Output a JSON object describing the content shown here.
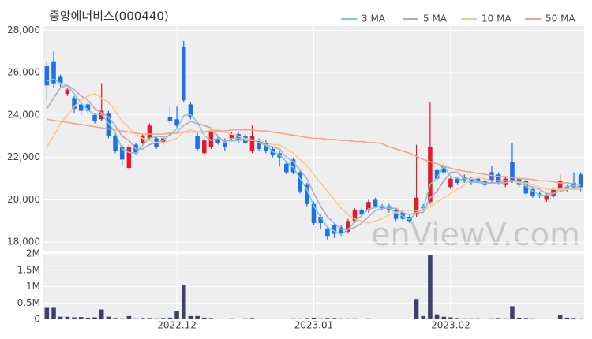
{
  "chart_data": [
    {
      "type": "candlestick",
      "title": "중앙에너비스(000440)",
      "watermark": "enViewV.com",
      "up_color": "#e8192c",
      "down_color": "#1f6fe5",
      "legend": "upper right",
      "grid": true,
      "ylim": [
        17600,
        28200
      ],
      "yticks": [
        {
          "value": 18000,
          "label": "18,000"
        },
        {
          "value": 20000,
          "label": "20,000"
        },
        {
          "value": 22000,
          "label": "22,000"
        },
        {
          "value": 24000,
          "label": "24,000"
        },
        {
          "value": 26000,
          "label": "26,000"
        },
        {
          "value": 28000,
          "label": "28,000"
        }
      ],
      "open": [
        26300,
        26500,
        25800,
        25000,
        24800,
        24500,
        24500,
        24000,
        23800,
        24100,
        23000,
        22500,
        21500,
        22600,
        22700,
        22900,
        22900,
        22700,
        23900,
        23800,
        27200,
        24500,
        23000,
        22200,
        22500,
        22900,
        22800,
        22900,
        23100,
        23000,
        22300,
        22800,
        22700,
        22400,
        22200,
        21700,
        21900,
        21300,
        20700,
        19800,
        19200,
        18600,
        18800,
        18700,
        18500,
        19000,
        19500,
        19500,
        20000,
        19700,
        19700,
        19500,
        19400,
        19200,
        19300,
        19700,
        19900,
        21400,
        21600,
        20600,
        21000,
        21100,
        21000,
        21000,
        20900,
        21300,
        21200,
        20700,
        21800,
        21000,
        20900,
        20500,
        20300,
        20000,
        20200,
        20500,
        20600,
        20800,
        21200
      ],
      "high": [
        26500,
        27000,
        25900,
        25300,
        24900,
        24600,
        24600,
        24100,
        25500,
        24200,
        23100,
        22600,
        22600,
        22700,
        23100,
        23600,
        23000,
        23000,
        24400,
        24400,
        27500,
        24600,
        23200,
        22900,
        23300,
        23000,
        22900,
        23200,
        23200,
        23100,
        23500,
        22900,
        22800,
        22500,
        22300,
        21800,
        22000,
        21400,
        20800,
        19900,
        19300,
        18700,
        18900,
        18800,
        19100,
        19600,
        19600,
        20000,
        20100,
        19800,
        19800,
        19600,
        19500,
        19300,
        22600,
        19800,
        24600,
        21500,
        21700,
        21100,
        21100,
        21200,
        21100,
        21100,
        21000,
        21600,
        21300,
        21100,
        22700,
        21100,
        21000,
        20600,
        20400,
        20300,
        20600,
        21200,
        20700,
        21300,
        21300
      ],
      "low": [
        24700,
        25300,
        25300,
        24900,
        24100,
        24000,
        24100,
        23600,
        23700,
        22900,
        22200,
        21600,
        21400,
        22100,
        22600,
        22800,
        22400,
        22600,
        23500,
        23400,
        24600,
        23800,
        22300,
        22100,
        22400,
        22600,
        22300,
        22800,
        22700,
        22600,
        22200,
        22300,
        22200,
        22000,
        21600,
        21200,
        21200,
        20300,
        19700,
        18800,
        18600,
        18100,
        18200,
        18300,
        18400,
        18900,
        19200,
        19400,
        19600,
        19500,
        19400,
        19000,
        19000,
        18900,
        19200,
        19500,
        19800,
        20900,
        21200,
        20500,
        20700,
        20800,
        20700,
        20700,
        20600,
        20800,
        20700,
        20600,
        20800,
        20600,
        20200,
        20100,
        20100,
        19900,
        20100,
        20400,
        20400,
        20500,
        20400
      ],
      "close": [
        25400,
        25500,
        25500,
        25200,
        24300,
        24200,
        24200,
        23700,
        24200,
        23000,
        22300,
        21900,
        22500,
        22200,
        23000,
        23500,
        22500,
        22900,
        23700,
        23500,
        24700,
        23900,
        22400,
        22800,
        23200,
        22700,
        22500,
        23100,
        22800,
        22700,
        23000,
        22400,
        22300,
        22100,
        22000,
        21300,
        21300,
        20400,
        19800,
        18900,
        18900,
        18300,
        18400,
        18400,
        19000,
        19500,
        19300,
        19900,
        19700,
        19600,
        19500,
        19100,
        19100,
        19000,
        20100,
        19600,
        22500,
        21000,
        21300,
        21000,
        20800,
        20900,
        20800,
        20800,
        20700,
        20900,
        20800,
        21000,
        20900,
        20700,
        20300,
        20200,
        20200,
        20200,
        20500,
        20900,
        20500,
        20600,
        20600
      ],
      "series": [
        {
          "name": "3 MA",
          "color": "#6fd3cf",
          "values": [
            25600,
            25700,
            25500,
            25400,
            25000,
            24570,
            24230,
            24030,
            24030,
            23630,
            23170,
            22400,
            22230,
            22200,
            22570,
            22900,
            23000,
            22970,
            23030,
            23370,
            23970,
            24030,
            23670,
            23030,
            22800,
            22900,
            22800,
            22770,
            22800,
            22870,
            22830,
            22700,
            22570,
            22270,
            22130,
            21800,
            21530,
            21000,
            20500,
            19700,
            19200,
            18700,
            18530,
            18370,
            18600,
            18970,
            19270,
            19570,
            19630,
            19730,
            19600,
            19400,
            19230,
            19070,
            19400,
            19570,
            20730,
            21030,
            21600,
            21100,
            21030,
            20900,
            20830,
            20830,
            20770,
            20800,
            20800,
            20900,
            20900,
            20870,
            20630,
            20400,
            20230,
            20200,
            20300,
            20530,
            20630,
            20670,
            20570
          ]
        },
        {
          "name": "5 MA",
          "color": "#b9a7cb",
          "values": [
            24300,
            24800,
            25300,
            25400,
            25200,
            24900,
            24700,
            24300,
            24100,
            23900,
            23500,
            23000,
            22800,
            22400,
            22400,
            22600,
            22700,
            22800,
            23100,
            23200,
            23500,
            23700,
            23600,
            23500,
            23400,
            23000,
            22700,
            22900,
            22900,
            22800,
            22800,
            22800,
            22600,
            22500,
            22400,
            22000,
            21800,
            21400,
            21000,
            20300,
            19700,
            19200,
            18900,
            18600,
            18600,
            18700,
            18900,
            19200,
            19500,
            19600,
            19600,
            19600,
            19400,
            19300,
            19400,
            19400,
            20100,
            20400,
            20900,
            21300,
            21300,
            21000,
            21000,
            20900,
            20800,
            20800,
            20800,
            20800,
            20900,
            20900,
            20700,
            20600,
            20500,
            20300,
            20300,
            20400,
            20500,
            20500,
            20600
          ]
        },
        {
          "name": "10 MA",
          "color": "#f6ca8c",
          "values": [
            22500,
            23000,
            23600,
            24000,
            24400,
            24700,
            24900,
            25000,
            24800,
            24600,
            24200,
            23700,
            23400,
            23100,
            22900,
            22800,
            22700,
            22700,
            22800,
            22900,
            23200,
            23300,
            23200,
            23200,
            23300,
            23300,
            23200,
            23100,
            23000,
            22900,
            22800,
            22800,
            22700,
            22600,
            22600,
            22400,
            22200,
            21900,
            21600,
            21200,
            20800,
            20400,
            20000,
            19600,
            19300,
            19100,
            19000,
            18900,
            19000,
            19100,
            19300,
            19400,
            19500,
            19500,
            19500,
            19500,
            19700,
            19900,
            20100,
            20300,
            20500,
            20700,
            21000,
            21100,
            21000,
            20900,
            20900,
            20900,
            20900,
            20800,
            20800,
            20700,
            20600,
            20500,
            20500,
            20500,
            20500,
            20500,
            20500
          ]
        },
        {
          "name": "50 MA",
          "color": "#f5a38d",
          "values": [
            23800,
            23750,
            23700,
            23650,
            23600,
            23550,
            23500,
            23450,
            23400,
            23350,
            23300,
            23250,
            23200,
            23150,
            23100,
            23100,
            23100,
            23100,
            23150,
            23150,
            23200,
            23200,
            23200,
            23200,
            23250,
            23250,
            23250,
            23300,
            23300,
            23300,
            23300,
            23250,
            23250,
            23200,
            23150,
            23100,
            23050,
            23000,
            22950,
            22900,
            22900,
            22850,
            22850,
            22800,
            22800,
            22750,
            22750,
            22700,
            22700,
            22650,
            22500,
            22400,
            22300,
            22200,
            22050,
            21900,
            21800,
            21700,
            21600,
            21500,
            21400,
            21350,
            21300,
            21250,
            21200,
            21150,
            21100,
            21100,
            21050,
            21000,
            21000,
            20950,
            20900,
            20900,
            20850,
            20800,
            20800,
            20750,
            20700
          ]
        }
      ]
    },
    {
      "type": "bar",
      "color": "#3f3f6e",
      "grid": true,
      "ylim": [
        0,
        2000000
      ],
      "yticks": [
        0,
        {
          "value": 500000,
          "label": "0.5M"
        },
        {
          "value": 1000000,
          "label": "1M"
        },
        {
          "value": 1500000,
          "label": "1.5M"
        },
        {
          "value": 2000000,
          "label": "2M"
        }
      ],
      "categories": [
        null,
        null,
        null,
        null,
        null,
        null,
        null,
        null,
        null,
        null,
        null,
        null,
        null,
        null,
        null,
        null,
        null,
        null,
        null,
        "2022.12",
        null,
        null,
        null,
        null,
        null,
        null,
        null,
        null,
        null,
        null,
        null,
        null,
        null,
        null,
        null,
        null,
        null,
        null,
        null,
        "2023.01",
        null,
        null,
        null,
        null,
        null,
        null,
        null,
        null,
        null,
        null,
        null,
        null,
        null,
        null,
        null,
        null,
        null,
        null,
        null,
        "2023.02",
        null,
        null,
        null,
        null,
        null,
        null,
        null,
        null,
        null,
        null,
        null,
        null,
        null,
        null,
        null,
        null,
        null,
        null,
        null
      ],
      "values": [
        350000,
        350000,
        80000,
        80000,
        60000,
        70000,
        50000,
        60000,
        300000,
        80000,
        40000,
        30000,
        100000,
        30000,
        40000,
        40000,
        30000,
        40000,
        50000,
        250000,
        1050000,
        100000,
        100000,
        50000,
        40000,
        20000,
        20000,
        30000,
        20000,
        30000,
        40000,
        20000,
        20000,
        20000,
        20000,
        20000,
        30000,
        30000,
        40000,
        50000,
        30000,
        40000,
        40000,
        30000,
        30000,
        30000,
        20000,
        30000,
        20000,
        20000,
        20000,
        20000,
        20000,
        20000,
        620000,
        100000,
        1950000,
        150000,
        80000,
        60000,
        40000,
        30000,
        30000,
        30000,
        20000,
        30000,
        40000,
        30000,
        400000,
        50000,
        40000,
        30000,
        20000,
        20000,
        20000,
        120000,
        50000,
        40000,
        30000
      ]
    }
  ]
}
